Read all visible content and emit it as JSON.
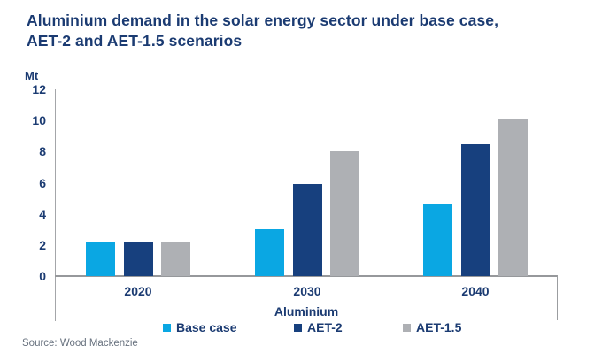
{
  "title_lines": [
    "Aluminium demand in the solar energy sector under base case,",
    "AET-2 and AET-1.5 scenarios"
  ],
  "source": "Source: Wood Mackenzie",
  "colors": {
    "title_text": "#1B3B72",
    "axis_line": "#9B9DA0",
    "source_text": "#68727F",
    "base_case": "#0AA7E3",
    "aet2": "#17407E",
    "aet15": "#AEB0B4"
  },
  "chart_data": {
    "type": "bar",
    "title": "Aluminium demand in the solar energy sector under base case, AET-2 and AET-1.5 scenarios",
    "unit": "Mt",
    "group_label": "Aluminium",
    "categories": [
      "2020",
      "2030",
      "2040"
    ],
    "series": [
      {
        "name": "Base case",
        "color": "#0AA7E3",
        "values": [
          2.2,
          3.0,
          4.6
        ]
      },
      {
        "name": "AET-2",
        "color": "#17407E",
        "values": [
          2.2,
          5.9,
          8.5
        ]
      },
      {
        "name": "AET-1.5",
        "color": "#AEB0B4",
        "values": [
          2.2,
          8.0,
          10.1
        ]
      }
    ],
    "ylim": [
      0,
      12
    ],
    "yticks": [
      0,
      2,
      4,
      6,
      8,
      10,
      12
    ],
    "grid": false,
    "legend_position": "bottom"
  }
}
